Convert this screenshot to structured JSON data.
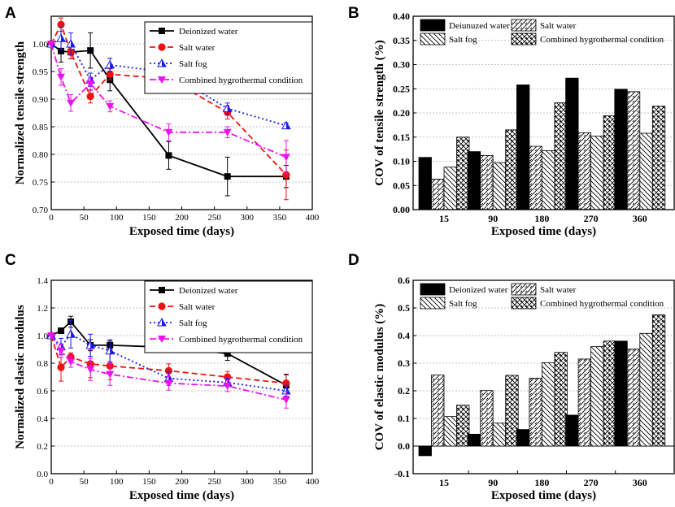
{
  "colors": {
    "deionized": "#000000",
    "salt_water": "#ee1111",
    "salt_fog": "#1a1aee",
    "combined": "#ee11ee",
    "grid": "#b0b0b0"
  },
  "chart_data": [
    {
      "panel": "A",
      "type": "line",
      "xlabel": "Exposed time (days)",
      "ylabel": "Normalized tensile strength",
      "xlim": [
        0,
        400
      ],
      "ylim": [
        0.7,
        1.05
      ],
      "xticks": [
        "0",
        "50",
        "100",
        "150",
        "200",
        "250",
        "300",
        "350",
        "400"
      ],
      "yticks": [
        "0.70",
        "0.75",
        "0.80",
        "0.85",
        "0.90",
        "0.95",
        "1.00"
      ],
      "legend_position": "top-right",
      "series": [
        {
          "name": "Deionized water",
          "color": "#000000",
          "dash": "solid",
          "marker": "square",
          "x": [
            0,
            15,
            30,
            60,
            90,
            180,
            270,
            360
          ],
          "y": [
            1.0,
            0.987,
            0.985,
            0.988,
            0.935,
            0.798,
            0.76,
            0.76
          ],
          "err": [
            0,
            0.02,
            0.012,
            0.032,
            0.02,
            0.025,
            0.035,
            0.02
          ]
        },
        {
          "name": "Salt water",
          "color": "#ee1111",
          "dash": "dash",
          "marker": "circle",
          "x": [
            0,
            15,
            30,
            60,
            90,
            180,
            270,
            360
          ],
          "y": [
            1.0,
            1.035,
            0.985,
            0.905,
            0.945,
            0.937,
            0.876,
            0.763
          ],
          "err": [
            0,
            0.012,
            0.012,
            0.012,
            0.01,
            0.015,
            0.012,
            0.045
          ]
        },
        {
          "name": "Salt fog",
          "color": "#1a1aee",
          "dash": "dot",
          "marker": "triangle-up",
          "x": [
            0,
            15,
            30,
            60,
            90,
            180,
            270,
            360
          ],
          "y": [
            1.0,
            1.01,
            1.0,
            0.935,
            0.962,
            0.948,
            0.883,
            0.852
          ],
          "err": [
            0,
            0.02,
            0.02,
            0.012,
            0.012,
            0.01,
            0.01,
            0.005
          ]
        },
        {
          "name": "Combined hygrothermal condition",
          "color": "#ee11ee",
          "dash": "dashdot",
          "marker": "triangle-down",
          "x": [
            0,
            15,
            30,
            60,
            90,
            180,
            270,
            360
          ],
          "y": [
            1.0,
            0.94,
            0.893,
            0.928,
            0.887,
            0.84,
            0.84,
            0.795
          ],
          "err": [
            0,
            0.015,
            0.015,
            0.012,
            0.01,
            0.015,
            0.01,
            0.03
          ]
        }
      ]
    },
    {
      "panel": "B",
      "type": "bar",
      "xlabel": "Exposed time (days)",
      "ylabel": "COV of tensile strength (%)",
      "ylim": [
        0,
        0.4
      ],
      "yticks": [
        "0.00",
        "0.05",
        "0.10",
        "0.15",
        "0.20",
        "0.25",
        "0.30",
        "0.35",
        "0.40"
      ],
      "categories": [
        "15",
        "90",
        "180",
        "270",
        "360"
      ],
      "series": [
        {
          "name": "Deiunuzed water",
          "fill": "solid",
          "values": [
            0.108,
            0.12,
            0.258,
            0.272,
            0.249
          ]
        },
        {
          "name": "Salt water",
          "fill": "hatch-fwd",
          "values": [
            0.063,
            0.112,
            0.131,
            0.159,
            0.244
          ]
        },
        {
          "name": "Salt fog",
          "fill": "hatch-back",
          "values": [
            0.088,
            0.097,
            0.122,
            0.152,
            0.158
          ]
        },
        {
          "name": "Combined hygrothermal condition",
          "fill": "crosshatch",
          "values": [
            0.15,
            0.165,
            0.221,
            0.194,
            0.214
          ]
        }
      ]
    },
    {
      "panel": "C",
      "type": "line",
      "xlabel": "Exposed time (days)",
      "ylabel": "Normalized elastic modulus",
      "xlim": [
        0,
        400
      ],
      "ylim": [
        0.0,
        1.4
      ],
      "xticks": [
        "0",
        "50",
        "100",
        "150",
        "200",
        "250",
        "300",
        "350",
        "400"
      ],
      "yticks": [
        "0.0",
        "0.2",
        "0.4",
        "0.6",
        "0.8",
        "1.0",
        "1.2",
        "1.4"
      ],
      "legend_position": "top-right",
      "series": [
        {
          "name": "Deionized water",
          "color": "#000000",
          "dash": "solid",
          "marker": "square",
          "x": [
            0,
            15,
            30,
            60,
            90,
            180,
            270,
            360
          ],
          "y": [
            1.0,
            1.035,
            1.1,
            0.93,
            0.93,
            0.915,
            0.87,
            0.64
          ],
          "err": [
            0,
            0.02,
            0.04,
            0.04,
            0.03,
            0.03,
            0.05,
            0.08
          ]
        },
        {
          "name": "Salt water",
          "color": "#ee1111",
          "dash": "dash",
          "marker": "circle",
          "x": [
            0,
            15,
            30,
            60,
            90,
            180,
            270,
            360
          ],
          "y": [
            1.0,
            0.77,
            0.845,
            0.795,
            0.78,
            0.745,
            0.7,
            0.655
          ],
          "err": [
            0,
            0.1,
            0.03,
            0.1,
            0.1,
            0.05,
            0.04,
            0.06
          ]
        },
        {
          "name": "Salt fog",
          "color": "#1a1aee",
          "dash": "dot",
          "marker": "triangle-up",
          "x": [
            0,
            15,
            30,
            60,
            90,
            180,
            270,
            360
          ],
          "y": [
            1.0,
            0.92,
            1.01,
            0.93,
            0.89,
            0.69,
            0.66,
            0.6
          ],
          "err": [
            0,
            0.06,
            0.1,
            0.08,
            0.08,
            0.05,
            0.03,
            0.04
          ]
        },
        {
          "name": "Combined hygrothermal condition",
          "color": "#ee11ee",
          "dash": "dashdot",
          "marker": "triangle-down",
          "x": [
            0,
            15,
            30,
            60,
            90,
            180,
            270,
            360
          ],
          "y": [
            1.0,
            0.89,
            0.81,
            0.755,
            0.72,
            0.655,
            0.635,
            0.535
          ],
          "err": [
            0,
            0.05,
            0.04,
            0.08,
            0.08,
            0.05,
            0.04,
            0.06
          ]
        }
      ]
    },
    {
      "panel": "D",
      "type": "bar",
      "xlabel": "Exposed time (days)",
      "ylabel": "COV of elastic modulus (%)",
      "ylim": [
        -0.1,
        0.6
      ],
      "yticks": [
        "-0.1",
        "0.0",
        "0.1",
        "0.2",
        "0.3",
        "0.4",
        "0.5",
        "0.6"
      ],
      "categories": [
        "15",
        "90",
        "180",
        "270",
        "360"
      ],
      "series": [
        {
          "name": "Deionized water",
          "fill": "solid",
          "values": [
            -0.035,
            0.043,
            0.06,
            0.112,
            0.38
          ]
        },
        {
          "name": "Salt water",
          "fill": "hatch-fwd",
          "values": [
            0.257,
            0.201,
            0.246,
            0.315,
            0.351
          ]
        },
        {
          "name": "Salt fog",
          "fill": "hatch-back",
          "values": [
            0.107,
            0.083,
            0.302,
            0.36,
            0.408
          ]
        },
        {
          "name": "Combined hygrothermal condition",
          "fill": "crosshatch",
          "values": [
            0.148,
            0.256,
            0.339,
            0.38,
            0.475
          ]
        }
      ]
    }
  ]
}
